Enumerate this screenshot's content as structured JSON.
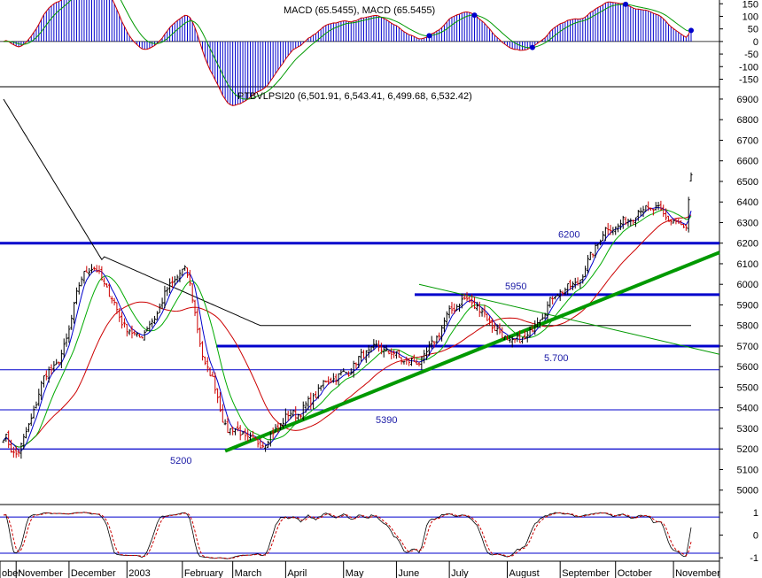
{
  "chart_data": [
    {
      "type": "bar",
      "panel": "macd",
      "title": "MACD (65.5455), MACD (65.5455)",
      "y_ticks": [
        150,
        100,
        50,
        0,
        -50,
        -100,
        -150
      ],
      "ylim": [
        -180,
        165
      ],
      "histogram_color": "#0000cc",
      "series": [
        {
          "name": "MACD",
          "color": "#cc0000"
        },
        {
          "name": "signal",
          "color": "#009900"
        }
      ],
      "signal_points_color": "#0000cc"
    },
    {
      "type": "line",
      "panel": "price",
      "title": "PTBVLPSI20 (6,501.91, 6,543.41, 6,499.68, 6,532.42)",
      "open": 6501.91,
      "high": 6543.41,
      "low": 6499.68,
      "close": 6532.42,
      "y_ticks": [
        6900,
        6800,
        6700,
        6600,
        6500,
        6400,
        6300,
        6200,
        6100,
        6000,
        5900,
        5800,
        5700,
        5600,
        5500,
        5400,
        5300,
        5200,
        5100,
        5000
      ],
      "ylim": [
        4930,
        6960
      ],
      "x_labels": [
        "ober",
        "November",
        "December",
        "2003",
        "February",
        "March",
        "April",
        "May",
        "June",
        "July",
        "August",
        "September",
        "October",
        "November"
      ],
      "x_pivot_dates": [
        "2002-10-25",
        "2002-10-31",
        "2002-11-22",
        "2002-12-12",
        "2003-01-08",
        "2003-02-04",
        "2003-02-17",
        "2003-02-27",
        "2003-03-18",
        "2003-04-04",
        "2003-04-29",
        "2003-05-21",
        "2003-06-11",
        "2003-07-09",
        "2003-08-06",
        "2003-09-04",
        "2003-09-30",
        "2003-10-20",
        "2003-11-10",
        "2003-11-12"
      ],
      "x_pivot_close": [
        5260,
        5180,
        5600,
        6080,
        5750,
        6060,
        5590,
        5300,
        5230,
        5370,
        5550,
        5690,
        5620,
        5920,
        5720,
        5980,
        6280,
        6370,
        6280,
        6530
      ],
      "ma_colors": {
        "ma_short": "#0000cc",
        "ma_mid": "#00aa00",
        "ma_long": "#cc0000",
        "ma_200": "#000000",
        "stochastic": "#cc0000"
      },
      "horizontal_levels": [
        {
          "label": "6200",
          "value": 6200
        },
        {
          "label": "5950",
          "value": 5950
        },
        {
          "label": "5.700",
          "value": 5700
        },
        {
          "label": "5390",
          "value": 5390
        },
        {
          "label": "5200",
          "value": 5200
        }
      ],
      "extra_lines": [
        5585,
        5390,
        5200
      ],
      "trendline": {
        "color": "#009900",
        "from": [
          "2003-02-26",
          5190
        ],
        "to": [
          "2003-11-14",
          6155
        ]
      },
      "down_trendline": {
        "color": "#009900",
        "from": [
          "2003-06-13",
          6000
        ],
        "to": [
          "2003-11-14",
          5660
        ]
      }
    },
    {
      "type": "line",
      "panel": "stochastic",
      "y_ticks": [
        1,
        0,
        -1
      ],
      "ylim": [
        -1.15,
        1.35
      ],
      "levels": [
        0.8,
        -0.8
      ],
      "series": [
        {
          "name": "",
          "color": "#cc0000"
        }
      ]
    }
  ]
}
